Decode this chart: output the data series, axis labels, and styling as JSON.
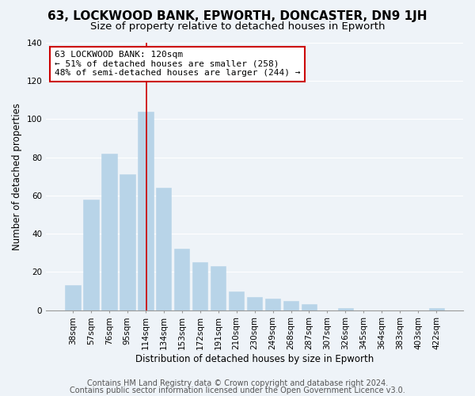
{
  "title": "63, LOCKWOOD BANK, EPWORTH, DONCASTER, DN9 1JH",
  "subtitle": "Size of property relative to detached houses in Epworth",
  "xlabel": "Distribution of detached houses by size in Epworth",
  "ylabel": "Number of detached properties",
  "bar_labels": [
    "38sqm",
    "57sqm",
    "76sqm",
    "95sqm",
    "114sqm",
    "134sqm",
    "153sqm",
    "172sqm",
    "191sqm",
    "210sqm",
    "230sqm",
    "249sqm",
    "268sqm",
    "287sqm",
    "307sqm",
    "326sqm",
    "345sqm",
    "364sqm",
    "383sqm",
    "403sqm",
    "422sqm"
  ],
  "bar_heights": [
    13,
    58,
    82,
    71,
    104,
    64,
    32,
    25,
    23,
    10,
    7,
    6,
    5,
    3,
    0,
    1,
    0,
    0,
    0,
    0,
    1
  ],
  "bar_color": "#b8d4e8",
  "bar_edge_color": "#b8d4e8",
  "vline_color": "#cc0000",
  "annotation_text": "63 LOCKWOOD BANK: 120sqm\n← 51% of detached houses are smaller (258)\n48% of semi-detached houses are larger (244) →",
  "annotation_box_edgecolor": "#cc0000",
  "annotation_box_facecolor": "#ffffff",
  "ylim": [
    0,
    140
  ],
  "yticks": [
    0,
    20,
    40,
    60,
    80,
    100,
    120,
    140
  ],
  "footer_line1": "Contains HM Land Registry data © Crown copyright and database right 2024.",
  "footer_line2": "Contains public sector information licensed under the Open Government Licence v3.0.",
  "background_color": "#eef3f8",
  "plot_background_color": "#eef3f8",
  "grid_color": "#ffffff",
  "title_fontsize": 11,
  "subtitle_fontsize": 9.5,
  "axis_label_fontsize": 8.5,
  "tick_fontsize": 7.5,
  "footer_fontsize": 7,
  "vline_index": 4
}
